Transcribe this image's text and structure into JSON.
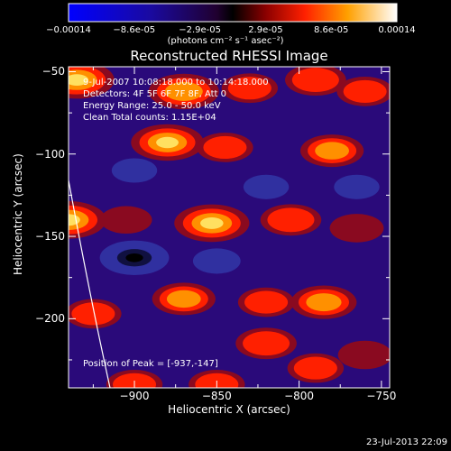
{
  "chart_data": {
    "type": "heatmap",
    "title": "Reconstructed RHESSI Image",
    "xlabel": "Heliocentric X (arcsec)",
    "ylabel": "Heliocentric Y (arcsec)",
    "xlim": [
      -940,
      -745
    ],
    "ylim": [
      -242,
      -47
    ],
    "xticks": [
      "-900",
      "-850",
      "-800",
      "-750"
    ],
    "yticks": [
      "-50",
      "-100",
      "-150",
      "-200"
    ],
    "colorbar": {
      "ticks": [
        "-0.00014",
        "-8.6e-05",
        "-2.9e-05",
        "2.9e-05",
        "8.6e-05",
        "0.00014"
      ],
      "units": "(photons cm⁻² s⁻¹ asec⁻²)",
      "range": [
        -0.00014,
        0.00014
      ]
    },
    "blobs": [
      {
        "x": -935,
        "y": -55,
        "v": 0.00014
      },
      {
        "x": -870,
        "y": -62,
        "v": 0.00012
      },
      {
        "x": -830,
        "y": -60,
        "v": 6e-05
      },
      {
        "x": -790,
        "y": -55,
        "v": 8e-05
      },
      {
        "x": -760,
        "y": -62,
        "v": 6e-05
      },
      {
        "x": -880,
        "y": -93,
        "v": 0.00013
      },
      {
        "x": -845,
        "y": -96,
        "v": 6e-05
      },
      {
        "x": -780,
        "y": -98,
        "v": 9e-05
      },
      {
        "x": -940,
        "y": -140,
        "v": 0.00014
      },
      {
        "x": -905,
        "y": -140,
        "v": 4e-05
      },
      {
        "x": -853,
        "y": -142,
        "v": 0.00014
      },
      {
        "x": -805,
        "y": -140,
        "v": 8e-05
      },
      {
        "x": -765,
        "y": -145,
        "v": 5e-05
      },
      {
        "x": -870,
        "y": -188,
        "v": 9e-05
      },
      {
        "x": -820,
        "y": -190,
        "v": 6e-05
      },
      {
        "x": -785,
        "y": -190,
        "v": 0.0001
      },
      {
        "x": -925,
        "y": -197,
        "v": 6e-05
      },
      {
        "x": -820,
        "y": -215,
        "v": 8e-05
      },
      {
        "x": -790,
        "y": -230,
        "v": 6e-05
      },
      {
        "x": -900,
        "y": -240,
        "v": 6e-05
      },
      {
        "x": -850,
        "y": -240,
        "v": 6e-05
      },
      {
        "x": -760,
        "y": -222,
        "v": 5e-05
      },
      {
        "x": -900,
        "y": -163,
        "v": -0.00014
      },
      {
        "x": -850,
        "y": -165,
        "v": -4e-05
      },
      {
        "x": -900,
        "y": -110,
        "v": -3e-05
      },
      {
        "x": -820,
        "y": -120,
        "v": -3e-05
      },
      {
        "x": -765,
        "y": -120,
        "v": -3e-05
      }
    ]
  },
  "annotations": {
    "time": "9-Jul-2007 10:08:18.000 to 10:14:18.000",
    "detectors": "Detectors: 4F 5F 6F 7F 8F, Att 0",
    "energy": "Energy Range: 25.0 - 50.0 keV",
    "clean": "Clean     Total counts: 1.15E+04",
    "peak": "Position of Peak = [-937,-147]"
  },
  "footer": {
    "date": "23-Jul-2013 22:09"
  },
  "colors": {
    "background": "#000000",
    "frame": "#ffffff"
  }
}
